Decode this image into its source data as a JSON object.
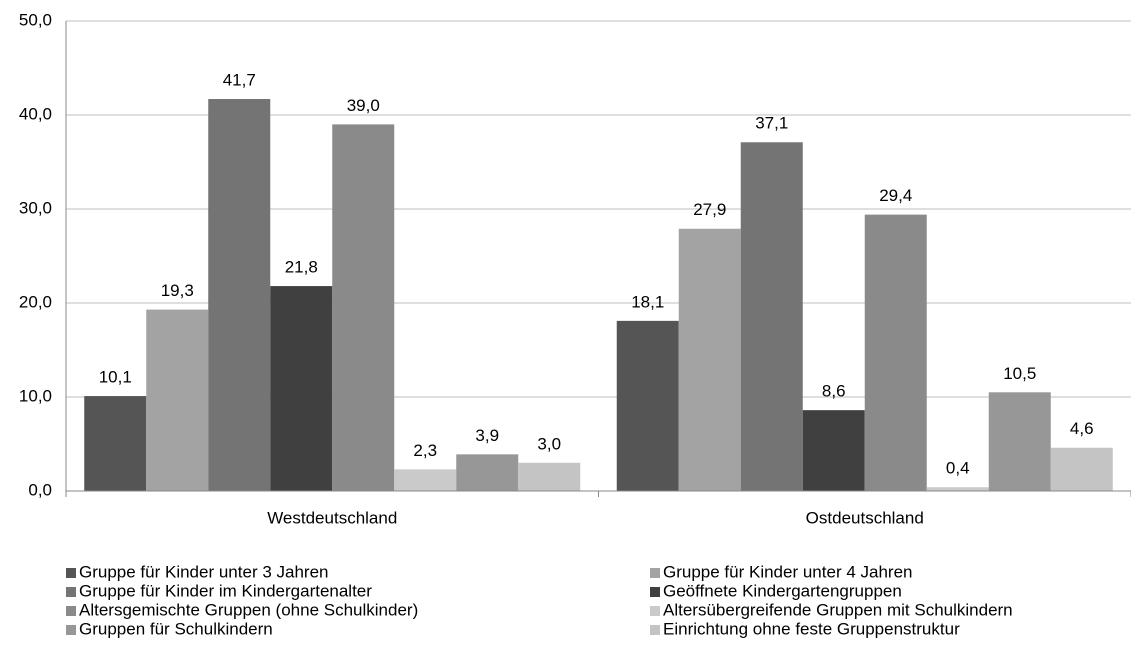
{
  "chart_data": {
    "type": "bar",
    "categories": [
      "Westdeutschland",
      "Ostdeutschland"
    ],
    "series": [
      {
        "name": "Gruppe für Kinder unter 3 Jahren",
        "color": "#555555",
        "values": [
          10.1,
          18.1
        ],
        "value_labels": [
          "10,1",
          "18,1"
        ]
      },
      {
        "name": "Gruppe für Kinder unter 4 Jahren",
        "color": "#a3a3a3",
        "values": [
          19.3,
          27.9
        ],
        "value_labels": [
          "19,3",
          "27,9"
        ]
      },
      {
        "name": "Gruppe für Kinder im Kindergartenalter",
        "color": "#747474",
        "values": [
          41.7,
          37.1
        ],
        "value_labels": [
          "41,7",
          "37,1"
        ]
      },
      {
        "name": "Geöffnete Kindergartengruppen",
        "color": "#404040",
        "values": [
          21.8,
          8.6
        ],
        "value_labels": [
          "21,8",
          "8,6"
        ]
      },
      {
        "name": "Altersgemischte Gruppen (ohne Schulkinder)",
        "color": "#8a8a8a",
        "values": [
          39.0,
          29.4
        ],
        "value_labels": [
          "39,0",
          "29,4"
        ]
      },
      {
        "name": "Altersübergreifende Gruppen mit Schulkindern",
        "color": "#cacaca",
        "values": [
          2.3,
          0.4
        ],
        "value_labels": [
          "2,3",
          "0,4"
        ]
      },
      {
        "name": "Gruppen für Schulkindern",
        "color": "#979797",
        "values": [
          3.9,
          10.5
        ],
        "value_labels": [
          "3,9",
          "10,5"
        ]
      },
      {
        "name": "Einrichtung ohne feste Gruppenstruktur",
        "color": "#c4c4c4",
        "values": [
          3.0,
          4.6
        ],
        "value_labels": [
          "3,0",
          "4,6"
        ]
      }
    ],
    "ylim": [
      0,
      50
    ],
    "yticks": [
      {
        "value": 0,
        "label": "0,0"
      },
      {
        "value": 10,
        "label": "10,0"
      },
      {
        "value": 20,
        "label": "20,0"
      },
      {
        "value": 30,
        "label": "30,0"
      },
      {
        "value": 40,
        "label": "40,0"
      },
      {
        "value": 50,
        "label": "50,0"
      }
    ],
    "grid": true,
    "legend": "bottom"
  }
}
